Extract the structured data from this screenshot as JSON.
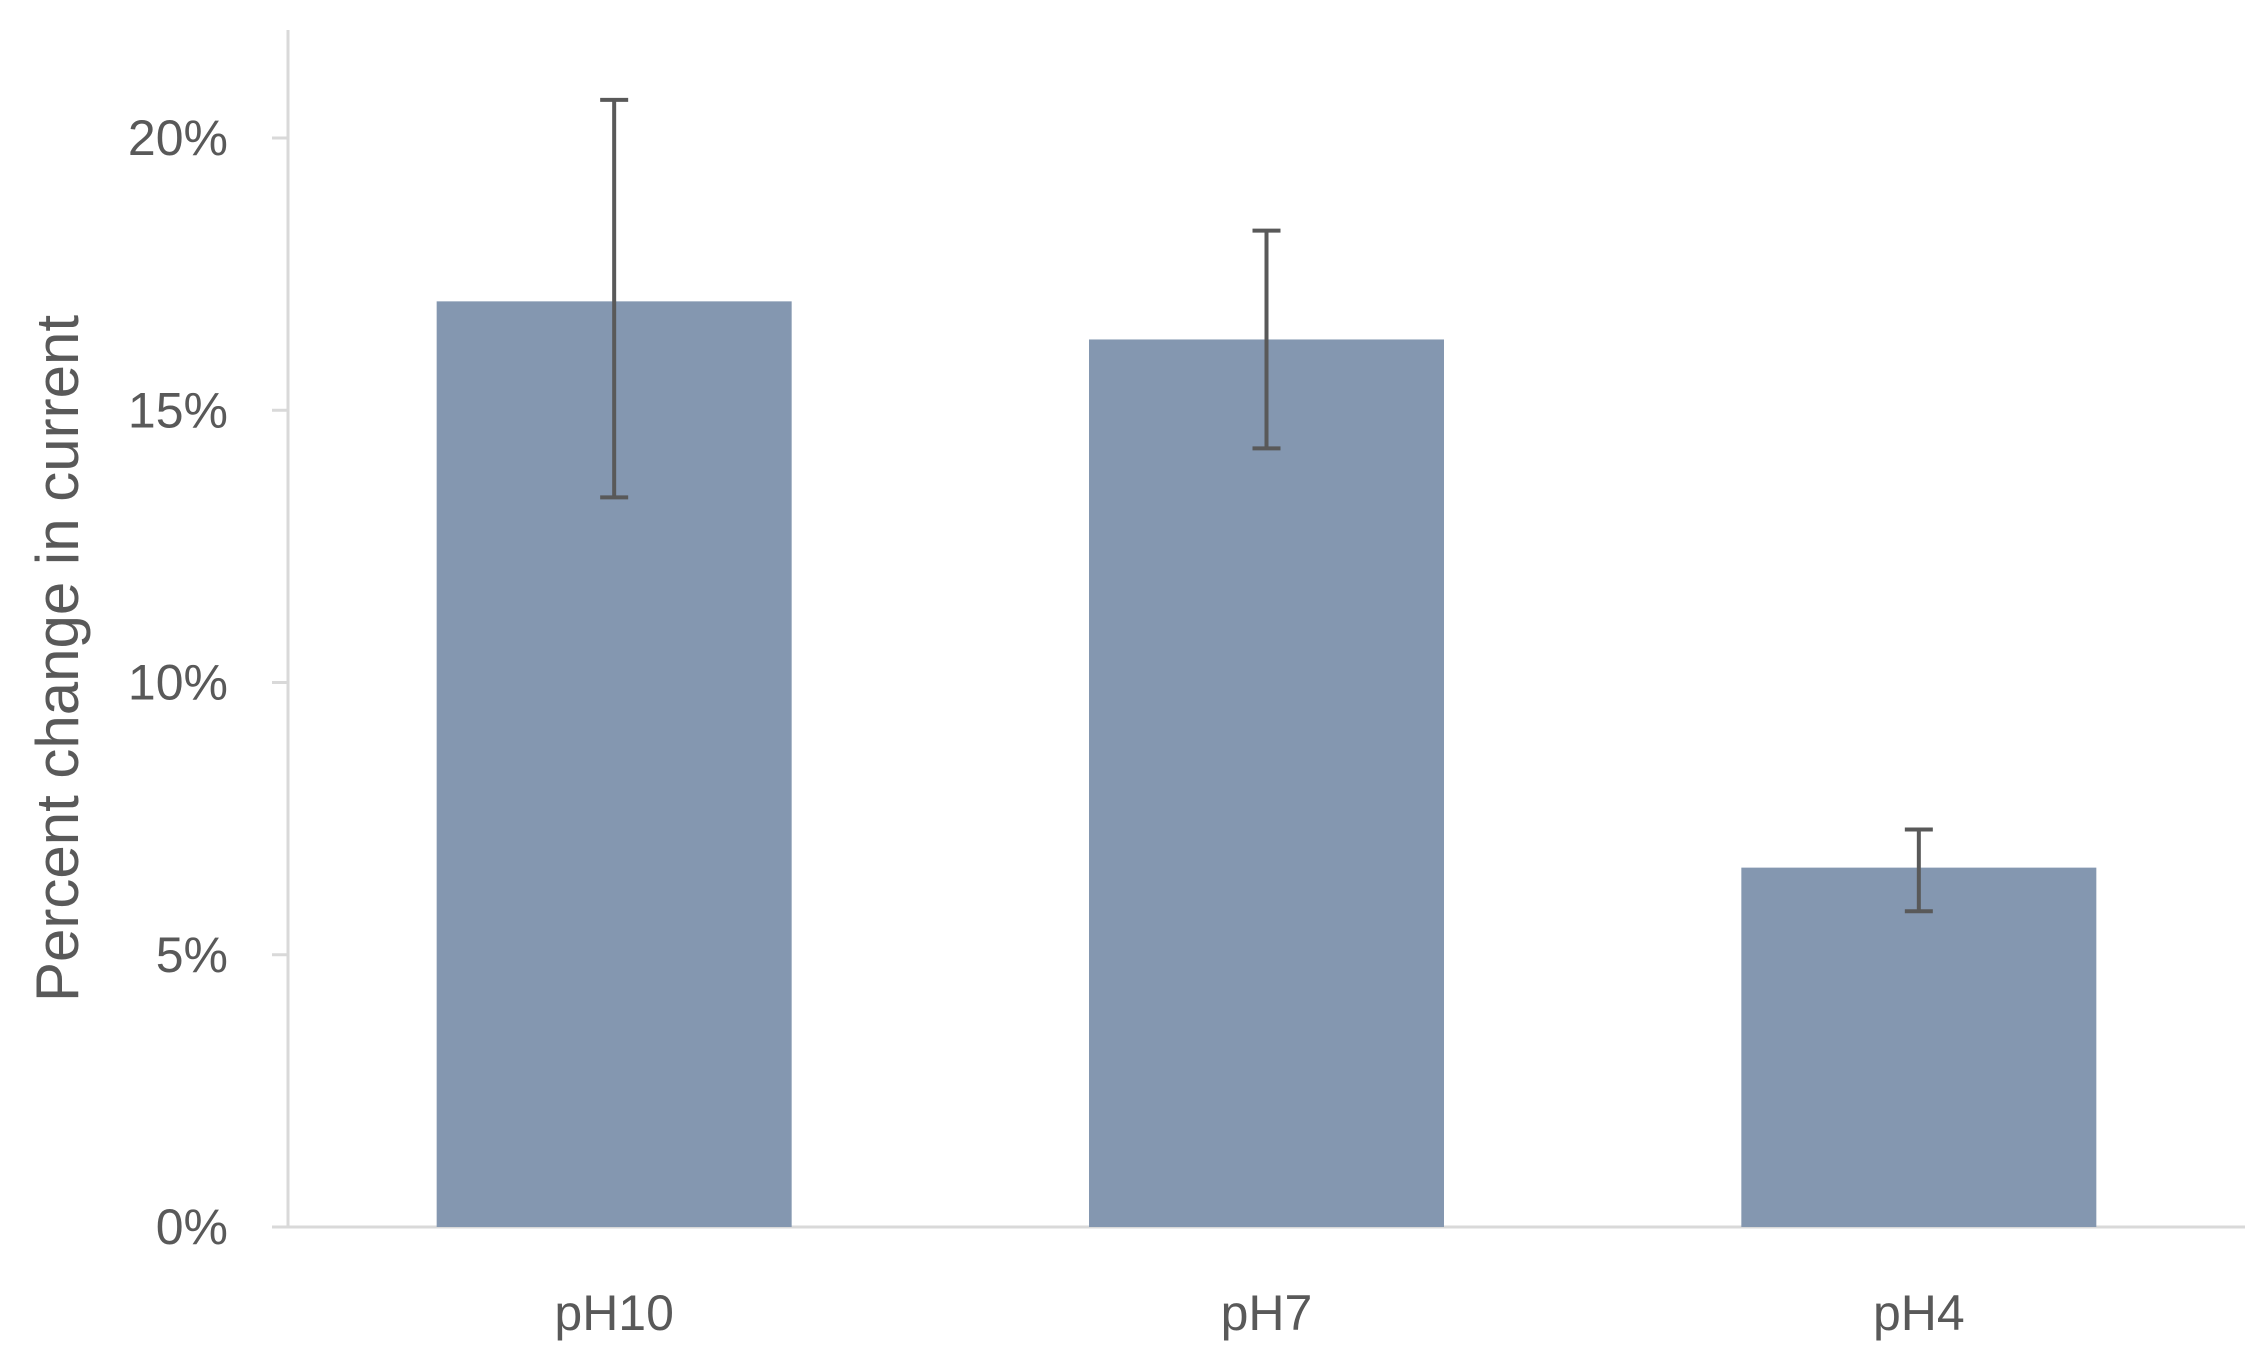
{
  "chart_data": {
    "type": "bar",
    "title": "",
    "xlabel": "",
    "ylabel": "Percent change in current",
    "categories": [
      "pH10",
      "pH7",
      "pH4"
    ],
    "values": [
      0.17,
      0.163,
      0.066
    ],
    "error_bars": {
      "upper": [
        0.207,
        0.183,
        0.073
      ],
      "lower": [
        0.134,
        0.143,
        0.058
      ]
    },
    "ylim": [
      0,
      0.22
    ],
    "yticks": [
      0,
      0.05,
      0.1,
      0.15,
      0.2
    ],
    "ytick_labels": [
      "0%",
      "5%",
      "10%",
      "15%",
      "20%"
    ],
    "grid": false,
    "legend": "none",
    "colors": {
      "bar": "#8497B0",
      "error_bar": "#595959",
      "axis": "#D9D9D9",
      "text": "#595959"
    }
  }
}
